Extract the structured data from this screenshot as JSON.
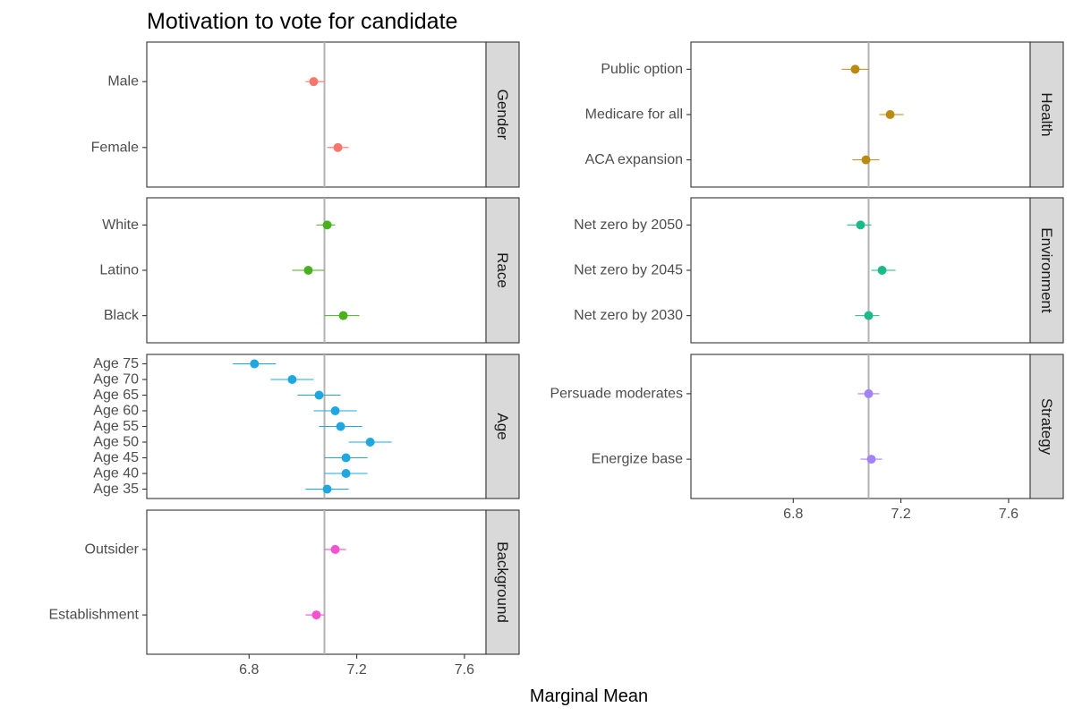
{
  "chart_data": {
    "type": "scatter",
    "subtype": "dot-and-whisker, faceted",
    "title": "Motivation to vote for candidate",
    "xlabel": "Marginal Mean",
    "xlim": [
      6.42,
      7.68
    ],
    "xticks": [
      6.8,
      7.2,
      7.6
    ],
    "reference_line": 7.08,
    "grid": false,
    "legend": "none",
    "panels": [
      {
        "facet": "Gender",
        "column": "left",
        "color": "#f8766d",
        "points": [
          {
            "label": "Male",
            "estimate": 7.04,
            "lower": 7.01,
            "upper": 7.08
          },
          {
            "label": "Female",
            "estimate": 7.13,
            "lower": 7.09,
            "upper": 7.17
          }
        ]
      },
      {
        "facet": "Race",
        "column": "left",
        "color": "#49b11d",
        "points": [
          {
            "label": "White",
            "estimate": 7.09,
            "lower": 7.05,
            "upper": 7.12
          },
          {
            "label": "Latino",
            "estimate": 7.02,
            "lower": 6.96,
            "upper": 7.08
          },
          {
            "label": "Black",
            "estimate": 7.15,
            "lower": 7.08,
            "upper": 7.21
          }
        ]
      },
      {
        "facet": "Age",
        "column": "left",
        "color": "#1fa7e0",
        "points": [
          {
            "label": "Age 75",
            "estimate": 6.82,
            "lower": 6.74,
            "upper": 6.9
          },
          {
            "label": "Age 70",
            "estimate": 6.96,
            "lower": 6.88,
            "upper": 7.04
          },
          {
            "label": "Age 65",
            "estimate": 7.06,
            "lower": 6.98,
            "upper": 7.14
          },
          {
            "label": "Age 60",
            "estimate": 7.12,
            "lower": 7.04,
            "upper": 7.2
          },
          {
            "label": "Age 55",
            "estimate": 7.14,
            "lower": 7.06,
            "upper": 7.22
          },
          {
            "label": "Age 50",
            "estimate": 7.25,
            "lower": 7.17,
            "upper": 7.33
          },
          {
            "label": "Age 45",
            "estimate": 7.16,
            "lower": 7.08,
            "upper": 7.24
          },
          {
            "label": "Age 40",
            "estimate": 7.16,
            "lower": 7.08,
            "upper": 7.24
          },
          {
            "label": "Age 35",
            "estimate": 7.09,
            "lower": 7.01,
            "upper": 7.17
          }
        ]
      },
      {
        "facet": "Background",
        "column": "left",
        "color": "#f352d0",
        "points": [
          {
            "label": "Outsider",
            "estimate": 7.12,
            "lower": 7.08,
            "upper": 7.16
          },
          {
            "label": "Establishment",
            "estimate": 7.05,
            "lower": 7.01,
            "upper": 7.08
          }
        ]
      },
      {
        "facet": "Health",
        "column": "right",
        "color": "#bb8b11",
        "points": [
          {
            "label": "Public option",
            "estimate": 7.03,
            "lower": 6.98,
            "upper": 7.08
          },
          {
            "label": "Medicare for all",
            "estimate": 7.16,
            "lower": 7.12,
            "upper": 7.21
          },
          {
            "label": "ACA expansion",
            "estimate": 7.07,
            "lower": 7.02,
            "upper": 7.12
          }
        ]
      },
      {
        "facet": "Environment",
        "column": "right",
        "color": "#1cba8a",
        "points": [
          {
            "label": "Net zero by 2050",
            "estimate": 7.05,
            "lower": 7.0,
            "upper": 7.09
          },
          {
            "label": "Net zero by 2045",
            "estimate": 7.13,
            "lower": 7.09,
            "upper": 7.18
          },
          {
            "label": "Net zero by 2030",
            "estimate": 7.08,
            "lower": 7.03,
            "upper": 7.12
          }
        ]
      },
      {
        "facet": "Strategy",
        "column": "right",
        "color": "#a382f7",
        "points": [
          {
            "label": "Persuade moderates",
            "estimate": 7.08,
            "lower": 7.04,
            "upper": 7.12
          },
          {
            "label": "Energize base",
            "estimate": 7.09,
            "lower": 7.05,
            "upper": 7.13
          }
        ]
      }
    ]
  }
}
